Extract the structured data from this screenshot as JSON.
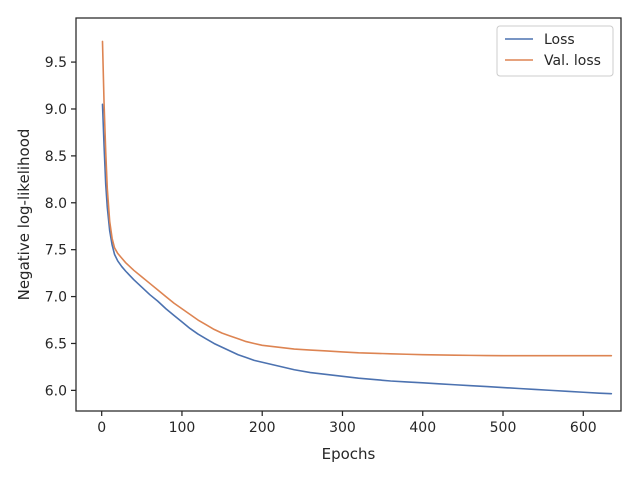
{
  "chart_data": {
    "type": "line",
    "title": "",
    "xlabel": "Epochs",
    "ylabel": "Negative log-likelihood",
    "xlim": [
      -32,
      647
    ],
    "ylim": [
      5.78,
      9.97
    ],
    "xticks": [
      0,
      100,
      200,
      300,
      400,
      500,
      600
    ],
    "yticks": [
      6.0,
      6.5,
      7.0,
      7.5,
      8.0,
      8.5,
      9.0,
      9.5
    ],
    "grid": false,
    "legend_position": "top-right",
    "series": [
      {
        "name": "Loss",
        "color": "#4c72b0",
        "x": [
          1,
          3,
          5,
          7,
          10,
          13,
          16,
          20,
          25,
          30,
          40,
          50,
          60,
          70,
          80,
          90,
          100,
          110,
          120,
          130,
          140,
          150,
          160,
          170,
          180,
          190,
          200,
          220,
          240,
          260,
          280,
          300,
          320,
          340,
          360,
          380,
          400,
          420,
          440,
          460,
          480,
          500,
          520,
          540,
          560,
          580,
          600,
          620,
          635
        ],
        "y": [
          9.05,
          8.6,
          8.2,
          7.95,
          7.7,
          7.55,
          7.45,
          7.38,
          7.32,
          7.27,
          7.18,
          7.1,
          7.02,
          6.95,
          6.87,
          6.8,
          6.73,
          6.66,
          6.6,
          6.55,
          6.5,
          6.46,
          6.42,
          6.38,
          6.35,
          6.32,
          6.3,
          6.26,
          6.22,
          6.19,
          6.17,
          6.15,
          6.13,
          6.115,
          6.1,
          6.09,
          6.08,
          6.07,
          6.06,
          6.05,
          6.04,
          6.03,
          6.02,
          6.01,
          6.0,
          5.99,
          5.98,
          5.97,
          5.965
        ]
      },
      {
        "name": "Val. loss",
        "color": "#dd8452",
        "x": [
          1,
          3,
          5,
          7,
          10,
          13,
          16,
          20,
          25,
          30,
          40,
          50,
          60,
          70,
          80,
          90,
          100,
          110,
          120,
          130,
          140,
          150,
          160,
          170,
          180,
          190,
          200,
          220,
          240,
          260,
          280,
          300,
          320,
          340,
          360,
          380,
          400,
          420,
          440,
          460,
          480,
          500,
          520,
          540,
          560,
          580,
          600,
          620,
          635
        ],
        "y": [
          9.72,
          9.05,
          8.55,
          8.15,
          7.8,
          7.62,
          7.52,
          7.46,
          7.41,
          7.36,
          7.28,
          7.21,
          7.14,
          7.07,
          7.0,
          6.93,
          6.87,
          6.81,
          6.75,
          6.7,
          6.65,
          6.61,
          6.58,
          6.55,
          6.52,
          6.5,
          6.48,
          6.46,
          6.44,
          6.43,
          6.42,
          6.41,
          6.4,
          6.395,
          6.39,
          6.385,
          6.38,
          6.378,
          6.375,
          6.373,
          6.371,
          6.37,
          6.37,
          6.37,
          6.37,
          6.37,
          6.37,
          6.37,
          6.37
        ]
      }
    ]
  }
}
